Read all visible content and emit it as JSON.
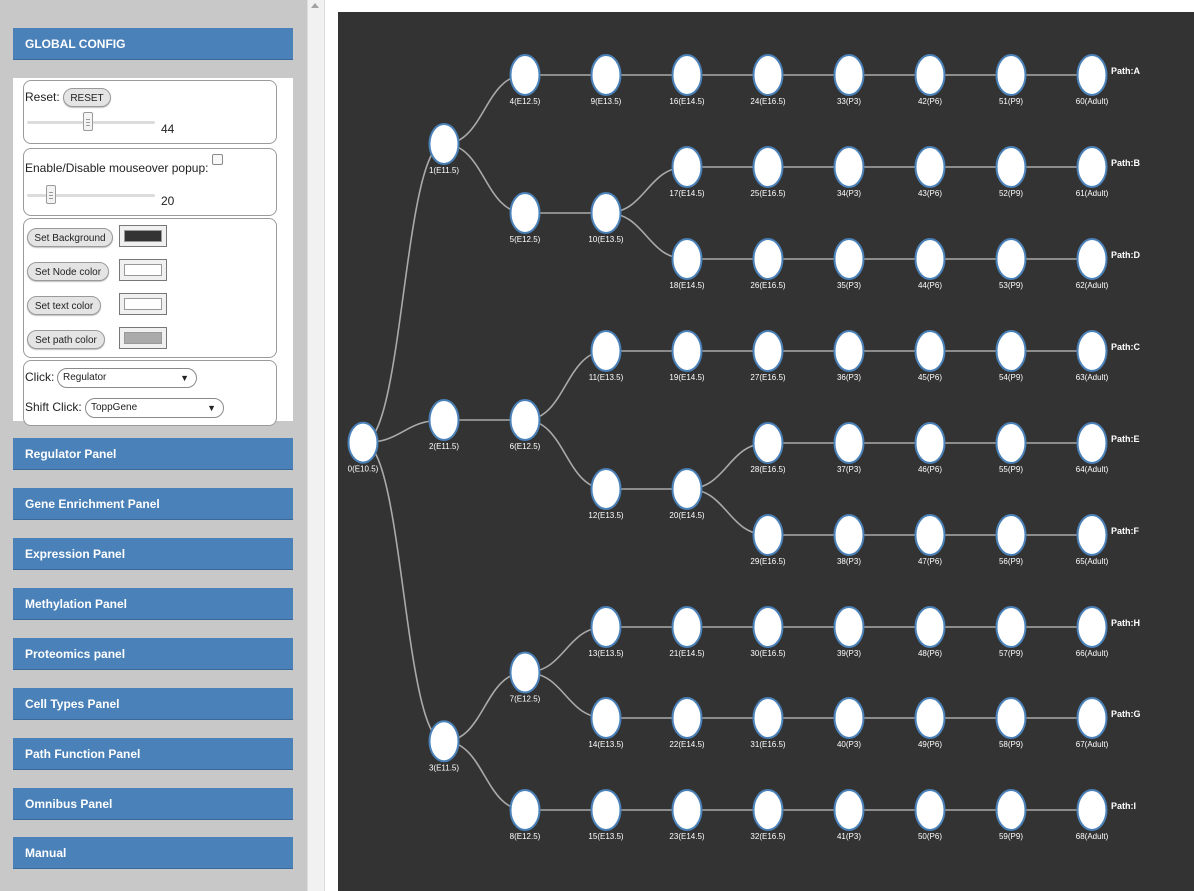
{
  "sidebar": {
    "global_config_label": "GLOBAL CONFIG",
    "reset": {
      "label": "Reset:",
      "button": "RESET",
      "slider_value": "44",
      "slider_fraction": 0.44
    },
    "popup": {
      "label": "Enable/Disable mouseover popup:",
      "checked": false,
      "slider_value": "20",
      "slider_fraction": 0.15
    },
    "colors": [
      {
        "button": "Set Background",
        "value": "#333333"
      },
      {
        "button": "Set Node color",
        "value": "#ffffff"
      },
      {
        "button": "Set text color",
        "value": "#ffffff"
      },
      {
        "button": "Set path color",
        "value": "#aaaaaa"
      }
    ],
    "click": {
      "label": "Click:",
      "value": "Regulator"
    },
    "shift_click": {
      "label": "Shift Click:",
      "value": "ToppGene"
    },
    "panels": [
      "Regulator Panel",
      "Gene Enrichment Panel",
      "Expression Panel",
      "Methylation Panel",
      "Proteomics panel",
      "Cell Types Panel",
      "Path Function Panel",
      "Omnibus Panel",
      "Manual"
    ]
  },
  "graph": {
    "background": "#333333",
    "node_fill": "#ffffff",
    "node_stroke": "#4a81b8",
    "edge_color": "#aaaaaa",
    "label_color": "#ffffff",
    "nodes": [
      {
        "id": 0,
        "label": "0(E10.5)"
      },
      {
        "id": 1,
        "label": "1(E11.5)"
      },
      {
        "id": 2,
        "label": "2(E11.5)"
      },
      {
        "id": 3,
        "label": "3(E11.5)"
      },
      {
        "id": 4,
        "label": "4(E12.5)"
      },
      {
        "id": 5,
        "label": "5(E12.5)"
      },
      {
        "id": 6,
        "label": "6(E12.5)"
      },
      {
        "id": 7,
        "label": "7(E12.5)"
      },
      {
        "id": 8,
        "label": "8(E12.5)"
      },
      {
        "id": 9,
        "label": "9(E13.5)"
      },
      {
        "id": 10,
        "label": "10(E13.5)"
      },
      {
        "id": 11,
        "label": "11(E13.5)"
      },
      {
        "id": 12,
        "label": "12(E13.5)"
      },
      {
        "id": 13,
        "label": "13(E13.5)"
      },
      {
        "id": 14,
        "label": "14(E13.5)"
      },
      {
        "id": 15,
        "label": "15(E13.5)"
      },
      {
        "id": 16,
        "label": "16(E14.5)"
      },
      {
        "id": 17,
        "label": "17(E14.5)"
      },
      {
        "id": 18,
        "label": "18(E14.5)"
      },
      {
        "id": 19,
        "label": "19(E14.5)"
      },
      {
        "id": 20,
        "label": "20(E14.5)"
      },
      {
        "id": 21,
        "label": "21(E14.5)"
      },
      {
        "id": 22,
        "label": "22(E14.5)"
      },
      {
        "id": 23,
        "label": "23(E14.5)"
      },
      {
        "id": 24,
        "label": "24(E16.5)"
      },
      {
        "id": 25,
        "label": "25(E16.5)"
      },
      {
        "id": 26,
        "label": "26(E16.5)"
      },
      {
        "id": 27,
        "label": "27(E16.5)"
      },
      {
        "id": 28,
        "label": "28(E16.5)"
      },
      {
        "id": 29,
        "label": "29(E16.5)"
      },
      {
        "id": 30,
        "label": "30(E16.5)"
      },
      {
        "id": 31,
        "label": "31(E16.5)"
      },
      {
        "id": 32,
        "label": "32(E16.5)"
      },
      {
        "id": 33,
        "label": "33(P3)"
      },
      {
        "id": 34,
        "label": "34(P3)"
      },
      {
        "id": 35,
        "label": "35(P3)"
      },
      {
        "id": 36,
        "label": "36(P3)"
      },
      {
        "id": 37,
        "label": "37(P3)"
      },
      {
        "id": 38,
        "label": "38(P3)"
      },
      {
        "id": 39,
        "label": "39(P3)"
      },
      {
        "id": 40,
        "label": "40(P3)"
      },
      {
        "id": 41,
        "label": "41(P3)"
      },
      {
        "id": 42,
        "label": "42(P6)"
      },
      {
        "id": 43,
        "label": "43(P6)"
      },
      {
        "id": 44,
        "label": "44(P6)"
      },
      {
        "id": 45,
        "label": "45(P6)"
      },
      {
        "id": 46,
        "label": "46(P6)"
      },
      {
        "id": 47,
        "label": "47(P6)"
      },
      {
        "id": 48,
        "label": "48(P6)"
      },
      {
        "id": 49,
        "label": "49(P6)"
      },
      {
        "id": 50,
        "label": "50(P6)"
      },
      {
        "id": 51,
        "label": "51(P9)"
      },
      {
        "id": 52,
        "label": "52(P9)"
      },
      {
        "id": 53,
        "label": "53(P9)"
      },
      {
        "id": 54,
        "label": "54(P9)"
      },
      {
        "id": 55,
        "label": "55(P9)"
      },
      {
        "id": 56,
        "label": "56(P9)"
      },
      {
        "id": 57,
        "label": "57(P9)"
      },
      {
        "id": 58,
        "label": "58(P9)"
      },
      {
        "id": 59,
        "label": "59(P9)"
      },
      {
        "id": 60,
        "label": "60(Adult)"
      },
      {
        "id": 61,
        "label": "61(Adult)"
      },
      {
        "id": 62,
        "label": "62(Adult)"
      },
      {
        "id": 63,
        "label": "63(Adult)"
      },
      {
        "id": 64,
        "label": "64(Adult)"
      },
      {
        "id": 65,
        "label": "65(Adult)"
      },
      {
        "id": 66,
        "label": "66(Adult)"
      },
      {
        "id": 67,
        "label": "67(Adult)"
      },
      {
        "id": 68,
        "label": "68(Adult)"
      }
    ],
    "edges": [
      [
        0,
        1
      ],
      [
        0,
        2
      ],
      [
        0,
        3
      ],
      [
        1,
        4
      ],
      [
        1,
        5
      ],
      [
        2,
        6
      ],
      [
        3,
        7
      ],
      [
        3,
        8
      ],
      [
        4,
        9
      ],
      [
        5,
        10
      ],
      [
        6,
        11
      ],
      [
        6,
        12
      ],
      [
        7,
        13
      ],
      [
        7,
        14
      ],
      [
        8,
        15
      ],
      [
        9,
        16
      ],
      [
        10,
        17
      ],
      [
        10,
        18
      ],
      [
        11,
        19
      ],
      [
        12,
        20
      ],
      [
        13,
        21
      ],
      [
        14,
        22
      ],
      [
        15,
        23
      ],
      [
        16,
        24
      ],
      [
        17,
        25
      ],
      [
        18,
        26
      ],
      [
        19,
        27
      ],
      [
        20,
        28
      ],
      [
        20,
        29
      ],
      [
        21,
        30
      ],
      [
        22,
        31
      ],
      [
        23,
        32
      ],
      [
        24,
        33
      ],
      [
        25,
        34
      ],
      [
        26,
        35
      ],
      [
        27,
        36
      ],
      [
        28,
        37
      ],
      [
        29,
        38
      ],
      [
        30,
        39
      ],
      [
        31,
        40
      ],
      [
        32,
        41
      ],
      [
        33,
        42
      ],
      [
        34,
        43
      ],
      [
        35,
        44
      ],
      [
        36,
        45
      ],
      [
        37,
        46
      ],
      [
        38,
        47
      ],
      [
        39,
        48
      ],
      [
        40,
        49
      ],
      [
        41,
        50
      ],
      [
        42,
        51
      ],
      [
        43,
        52
      ],
      [
        44,
        53
      ],
      [
        45,
        54
      ],
      [
        46,
        55
      ],
      [
        47,
        56
      ],
      [
        48,
        57
      ],
      [
        49,
        58
      ],
      [
        50,
        59
      ],
      [
        51,
        60
      ],
      [
        52,
        61
      ],
      [
        53,
        62
      ],
      [
        54,
        63
      ],
      [
        55,
        64
      ],
      [
        56,
        65
      ],
      [
        57,
        66
      ],
      [
        58,
        67
      ],
      [
        59,
        68
      ]
    ],
    "paths": [
      {
        "node": 60,
        "label": "Path:A"
      },
      {
        "node": 61,
        "label": "Path:B"
      },
      {
        "node": 62,
        "label": "Path:D"
      },
      {
        "node": 63,
        "label": "Path:C"
      },
      {
        "node": 64,
        "label": "Path:E"
      },
      {
        "node": 65,
        "label": "Path:F"
      },
      {
        "node": 66,
        "label": "Path:H"
      },
      {
        "node": 67,
        "label": "Path:G"
      },
      {
        "node": 68,
        "label": "Path:I"
      }
    ]
  }
}
